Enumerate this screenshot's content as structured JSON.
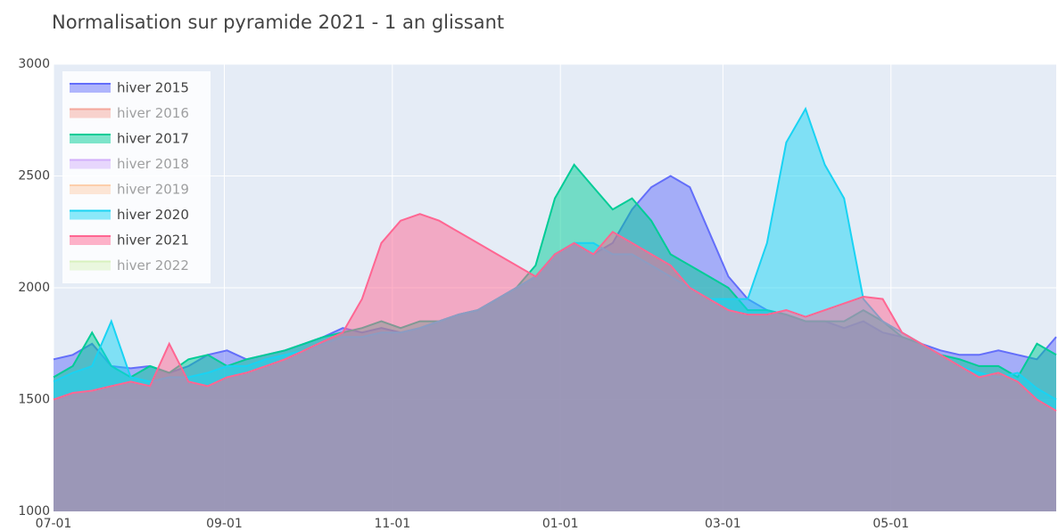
{
  "chart_data": {
    "type": "area",
    "title": "Normalisation sur pyramide 2021  -  1 an glissant",
    "x": [
      0,
      7,
      14,
      21,
      28,
      35,
      42,
      49,
      56,
      63,
      70,
      77,
      84,
      91,
      98,
      105,
      112,
      119,
      126,
      133,
      140,
      147,
      154,
      161,
      168,
      175,
      182,
      189,
      196,
      203,
      210,
      217,
      224,
      231,
      238,
      245,
      252,
      259,
      266,
      273,
      280,
      287,
      294,
      301,
      308,
      315,
      322,
      329,
      336,
      343,
      350,
      357,
      364
    ],
    "xlim": [
      0,
      364
    ],
    "xticks": [
      {
        "value": 0,
        "label": "07-01"
      },
      {
        "value": 62,
        "label": "09-01"
      },
      {
        "value": 123,
        "label": "11-01"
      },
      {
        "value": 184,
        "label": "01-01"
      },
      {
        "value": 243,
        "label": "03-01"
      },
      {
        "value": 304,
        "label": "05-01"
      }
    ],
    "ylim": [
      1000,
      3000
    ],
    "yticks": [
      1000,
      1500,
      2000,
      2500,
      3000
    ],
    "grid": true,
    "legend": "top-left",
    "series": [
      {
        "name": "hiver 2015",
        "color": "#636efa",
        "visible": true,
        "values": [
          1680,
          1700,
          1750,
          1650,
          1640,
          1650,
          1620,
          1650,
          1700,
          1720,
          1680,
          1700,
          1720,
          1750,
          1780,
          1820,
          1800,
          1820,
          1800,
          1820,
          1850,
          1880,
          1900,
          1950,
          2000,
          2050,
          2150,
          2200,
          2150,
          2200,
          2350,
          2450,
          2500,
          2450,
          2250,
          2050,
          1950,
          1900,
          1880,
          1850,
          1850,
          1820,
          1850,
          1800,
          1780,
          1750,
          1720,
          1700,
          1700,
          1720,
          1700,
          1680,
          1780
        ]
      },
      {
        "name": "hiver 2016",
        "color": "#ef553b",
        "visible": false
      },
      {
        "name": "hiver 2017",
        "color": "#00cc96",
        "visible": true,
        "values": [
          1600,
          1650,
          1800,
          1650,
          1600,
          1650,
          1620,
          1680,
          1700,
          1650,
          1680,
          1700,
          1720,
          1750,
          1780,
          1800,
          1820,
          1850,
          1820,
          1850,
          1850,
          1880,
          1900,
          1950,
          2000,
          2100,
          2400,
          2550,
          2450,
          2350,
          2400,
          2300,
          2150,
          2100,
          2050,
          2000,
          1900,
          1900,
          1880,
          1850,
          1850,
          1850,
          1900,
          1850,
          1780,
          1750,
          1700,
          1680,
          1650,
          1650,
          1600,
          1750,
          1700
        ]
      },
      {
        "name": "hiver 2018",
        "color": "#ab63fa",
        "visible": false
      },
      {
        "name": "hiver 2019",
        "color": "#ffa15a",
        "visible": false
      },
      {
        "name": "hiver 2020",
        "color": "#19d3f3",
        "visible": true,
        "values": [
          1580,
          1620,
          1650,
          1850,
          1600,
          1580,
          1600,
          1600,
          1620,
          1650,
          1650,
          1680,
          1700,
          1720,
          1750,
          1780,
          1780,
          1800,
          1800,
          1820,
          1850,
          1880,
          1900,
          1950,
          2000,
          2050,
          2150,
          2200,
          2200,
          2150,
          2150,
          2100,
          2050,
          2000,
          1950,
          1950,
          1950,
          2200,
          2650,
          2800,
          2550,
          2400,
          1950,
          1850,
          1800,
          1750,
          1700,
          1650,
          1620,
          1600,
          1620,
          1550,
          1500
        ]
      },
      {
        "name": "hiver 2021",
        "color": "#ff6692",
        "visible": true,
        "values": [
          1500,
          1530,
          1540,
          1560,
          1580,
          1560,
          1750,
          1580,
          1560,
          1600,
          1620,
          1650,
          1680,
          1720,
          1760,
          1800,
          1950,
          2200,
          2300,
          2330,
          2300,
          2250,
          2200,
          2150,
          2100,
          2050,
          2150,
          2200,
          2150,
          2250,
          2200,
          2150,
          2100,
          2000,
          1950,
          1900,
          1880,
          1880,
          1900,
          1870,
          1900,
          1930,
          1960,
          1950,
          1800,
          1750,
          1700,
          1650,
          1600,
          1620,
          1580,
          1500,
          1450
        ]
      },
      {
        "name": "hiver 2022",
        "color": "#b6e880",
        "visible": false
      }
    ]
  }
}
